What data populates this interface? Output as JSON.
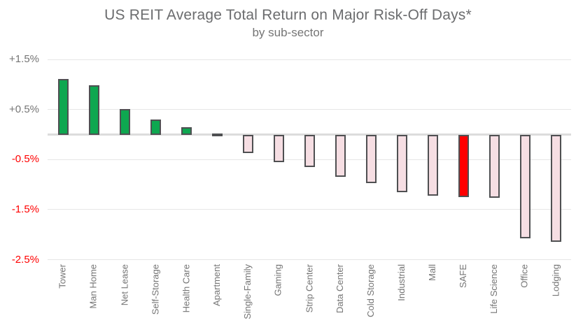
{
  "chart_data": {
    "type": "bar",
    "title": "US REIT Average Total Return on Major Risk-Off Days*",
    "subtitle": "by sub-sector",
    "categories": [
      "Tower",
      "Man Home",
      "Net Lease",
      "Self-Storage",
      "Health Care",
      "Apartment",
      "Single-Family",
      "Gaming",
      "Strip Center",
      "Data Center",
      "Cold Storage",
      "Industrial",
      "Mall",
      "SAFE",
      "Life Science",
      "Office",
      "Lodging"
    ],
    "values": [
      1.12,
      0.99,
      0.52,
      0.31,
      0.15,
      0.03,
      -0.36,
      -0.55,
      -0.64,
      -0.84,
      -0.97,
      -1.14,
      -1.22,
      -1.24,
      -1.26,
      -2.07,
      -2.13
    ],
    "highlight_category": "SAFE",
    "xlabel": "",
    "ylabel": "",
    "ylim": [
      -2.5,
      1.5
    ],
    "grid": "horizontal-only",
    "legend_position": "none",
    "y_axis": {
      "ticks": [
        {
          "label": "+1.5%",
          "value": 1.5,
          "color": "#757575"
        },
        {
          "label": "+0.5%",
          "value": 0.5,
          "color": "#757575"
        },
        {
          "label": "-0.5%",
          "value": -0.5,
          "color": "#ff0000"
        },
        {
          "label": "-1.5%",
          "value": -1.5,
          "color": "#ff0000"
        },
        {
          "label": "-2.5%",
          "value": -2.5,
          "color": "#ff0000"
        }
      ]
    },
    "colors": {
      "positive_bar": "#0ea750",
      "negative_bar": "#f6dee3",
      "highlight_bar": "#ff0000",
      "bar_border": "#4f5052",
      "gridline": "#e6e6e6",
      "zero_line": "#dcdcdc",
      "title": "#6b6c6e",
      "x_label": "#757575"
    }
  }
}
